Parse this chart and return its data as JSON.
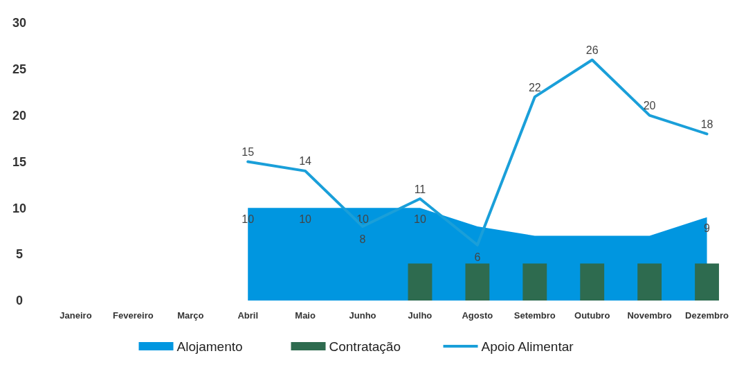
{
  "chart_data": {
    "type": "area",
    "categories": [
      "Janeiro",
      "Fevereiro",
      "Março",
      "Abril",
      "Maio",
      "Junho",
      "Julho",
      "Agosto",
      "Setembro",
      "Outubro",
      "Novembro",
      "Dezembro"
    ],
    "series": [
      {
        "name": "Alojamento",
        "color": "#0096e0",
        "values": [
          null,
          null,
          null,
          10,
          10,
          10,
          10,
          8,
          7,
          7,
          7,
          9
        ],
        "value_labels": [
          null,
          null,
          null,
          "10",
          "10",
          "10",
          "10",
          null,
          null,
          null,
          null,
          "9"
        ]
      },
      {
        "name": "Contratação",
        "type": "bar",
        "color": "#2e6b4f",
        "values": [
          null,
          null,
          null,
          null,
          null,
          null,
          4,
          4,
          4,
          4,
          4,
          4
        ]
      },
      {
        "name": "Apoio Alimentar",
        "type": "line",
        "color": "#1a9fd9",
        "values": [
          null,
          null,
          null,
          15,
          14,
          8,
          11,
          6,
          22,
          26,
          20,
          18
        ],
        "value_labels": [
          null,
          null,
          null,
          "15",
          "14",
          "8",
          "11",
          "6",
          "22",
          "26",
          "20",
          "18"
        ]
      }
    ],
    "ylim": [
      0,
      30
    ],
    "yticks": [
      0,
      5,
      10,
      15,
      20,
      25,
      30
    ],
    "legend": "bottom"
  }
}
